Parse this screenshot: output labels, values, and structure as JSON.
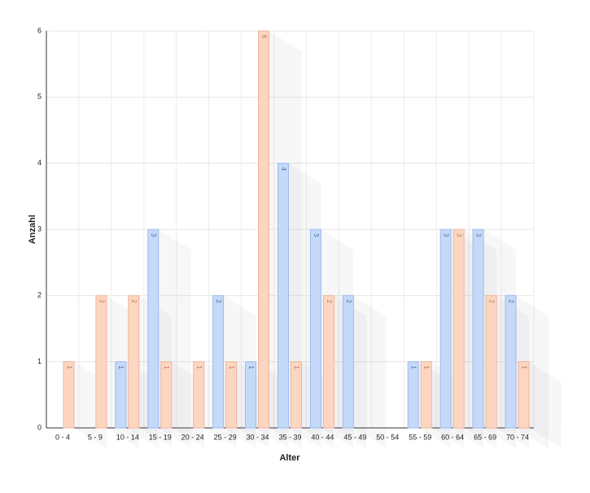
{
  "chart_data": {
    "type": "bar",
    "x_label": "Alter",
    "y_label": "Anzahl",
    "categories": [
      "0 - 4",
      "5 - 9",
      "10 - 14",
      "15 - 19",
      "20 - 24",
      "25 - 29",
      "30 - 34",
      "35 - 39",
      "40 - 44",
      "45 - 49",
      "50 - 54",
      "55 - 59",
      "60 - 64",
      "65 - 69",
      "70 - 74"
    ],
    "series": [
      {
        "color": "#c5d9f9",
        "values": [
          null,
          null,
          1,
          3,
          null,
          2,
          1,
          4,
          3,
          2,
          null,
          1,
          3,
          3,
          2
        ]
      },
      {
        "color": "#fdd6c2",
        "values": [
          1,
          2,
          2,
          1,
          1,
          1,
          6,
          1,
          2,
          null,
          null,
          1,
          3,
          2,
          1
        ]
      }
    ],
    "ylim": [
      0,
      6
    ],
    "yticks": [
      0,
      1,
      2,
      3,
      4,
      5,
      6
    ],
    "grid": true
  }
}
